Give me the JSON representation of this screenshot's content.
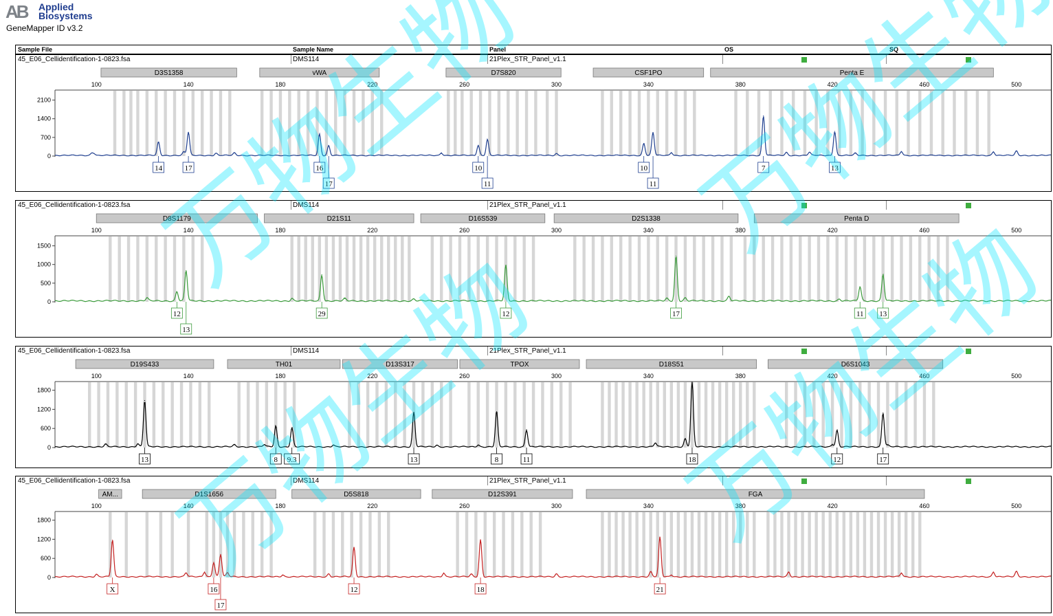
{
  "app": {
    "brand_mark": "AB",
    "brand_line1": "Applied",
    "brand_line2": "Biosystems",
    "product": "GeneMapper ID v3.2"
  },
  "header": {
    "sample_file": "Sample File",
    "sample_name": "Sample Name",
    "panel": "Panel",
    "os": "OS",
    "sq": "SQ"
  },
  "watermark_text": "万物生物",
  "chart_data": [
    {
      "type": "line",
      "panel_index": 1,
      "color": "#1f3f8f",
      "sample_file": "45_E06_Cellidentification-1-0823.fsa",
      "sample_name": "DMS114",
      "panel": "21Plex_STR_Panel_v1.1",
      "x_ticks": [
        100,
        140,
        180,
        220,
        260,
        300,
        340,
        380,
        420,
        460,
        500
      ],
      "xlim": [
        82,
        515
      ],
      "y_ticks": [
        0,
        700,
        1400,
        2100
      ],
      "ylim": [
        0,
        2450
      ],
      "markers": [
        {
          "name": "D3S1358",
          "range": [
            102,
            161
          ]
        },
        {
          "name": "vWA",
          "range": [
            171,
            223
          ]
        },
        {
          "name": "D7S820",
          "range": [
            252,
            302
          ]
        },
        {
          "name": "CSF1PO",
          "range": [
            316,
            364
          ]
        },
        {
          "name": "Penta E",
          "range": [
            367,
            490
          ]
        }
      ],
      "bins": [
        108,
        112,
        115,
        118,
        122,
        126,
        130,
        134,
        138,
        142,
        146,
        150,
        154,
        158,
        172,
        176,
        180,
        184,
        188,
        192,
        196,
        200,
        204,
        208,
        212,
        216,
        220,
        224,
        253,
        256,
        259,
        263,
        267,
        271,
        275,
        279,
        283,
        287,
        291,
        296,
        300,
        320,
        324,
        328,
        332,
        336,
        340,
        344,
        348,
        352,
        356,
        360,
        378,
        383,
        388,
        393,
        398,
        403,
        408,
        413,
        418,
        423,
        428,
        433,
        438,
        443,
        448,
        453,
        458,
        463,
        468,
        473,
        478,
        483,
        488
      ],
      "peaks": [
        {
          "x": 127,
          "h": 500
        },
        {
          "x": 140,
          "h": 870
        },
        {
          "x": 138,
          "h": 130
        },
        {
          "x": 197,
          "h": 800
        },
        {
          "x": 201,
          "h": 370
        },
        {
          "x": 266,
          "h": 380
        },
        {
          "x": 270,
          "h": 600
        },
        {
          "x": 338,
          "h": 450
        },
        {
          "x": 342,
          "h": 860
        },
        {
          "x": 390,
          "h": 1480
        },
        {
          "x": 421,
          "h": 900
        },
        {
          "x": 98,
          "h": 90
        },
        {
          "x": 99,
          "h": 70
        },
        {
          "x": 152,
          "h": 80
        },
        {
          "x": 160,
          "h": 90
        },
        {
          "x": 250,
          "h": 100
        },
        {
          "x": 300,
          "h": 70
        },
        {
          "x": 350,
          "h": 110
        },
        {
          "x": 400,
          "h": 110
        },
        {
          "x": 410,
          "h": 120
        },
        {
          "x": 430,
          "h": 80
        },
        {
          "x": 450,
          "h": 150
        },
        {
          "x": 490,
          "h": 140
        },
        {
          "x": 500,
          "h": 160
        }
      ],
      "alleles": [
        {
          "label": "14",
          "x": 127,
          "row": 0
        },
        {
          "label": "17",
          "x": 140,
          "row": 0
        },
        {
          "label": "16",
          "x": 197,
          "row": 0
        },
        {
          "label": "17",
          "x": 201,
          "row": 1
        },
        {
          "label": "10",
          "x": 266,
          "row": 0
        },
        {
          "label": "11",
          "x": 270,
          "row": 1
        },
        {
          "label": "10",
          "x": 338,
          "row": 0
        },
        {
          "label": "11",
          "x": 342,
          "row": 1
        },
        {
          "label": "7",
          "x": 390,
          "row": 0
        },
        {
          "label": "13",
          "x": 421,
          "row": 0
        }
      ]
    },
    {
      "type": "line",
      "panel_index": 2,
      "color": "#3a9a3a",
      "sample_file": "45_E06_Cellidentification-1-0823.fsa",
      "sample_name": "DMS114",
      "panel": "21Plex_STR_Panel_v1.1",
      "x_ticks": [
        100,
        140,
        180,
        220,
        260,
        300,
        340,
        380,
        420,
        460,
        500
      ],
      "xlim": [
        82,
        515
      ],
      "y_ticks": [
        0,
        500,
        1000,
        1500
      ],
      "ylim": [
        0,
        1750
      ],
      "markers": [
        {
          "name": "D8S1179",
          "range": [
            100,
            170
          ]
        },
        {
          "name": "D21S11",
          "range": [
            173,
            238
          ]
        },
        {
          "name": "D16S539",
          "range": [
            241,
            295
          ]
        },
        {
          "name": "D2S1338",
          "range": [
            299,
            379
          ]
        },
        {
          "name": "Penta D",
          "range": [
            386,
            475
          ]
        }
      ],
      "bins": [
        106,
        110,
        114,
        118,
        122,
        126,
        130,
        134,
        138,
        142,
        146,
        185,
        188,
        191,
        194,
        197,
        200,
        203,
        206,
        209,
        212,
        215,
        218,
        221,
        224,
        227,
        230,
        233,
        236,
        246,
        250,
        254,
        258,
        262,
        266,
        270,
        274,
        278,
        282,
        286,
        290,
        308,
        312,
        316,
        320,
        324,
        328,
        332,
        336,
        340,
        344,
        348,
        352,
        356,
        360,
        364,
        368,
        372,
        376,
        382,
        386,
        390,
        394,
        398,
        402,
        406,
        410,
        414,
        418,
        422,
        426,
        430,
        434,
        438,
        442,
        446,
        450,
        454,
        458,
        462,
        466,
        470
      ],
      "peaks": [
        {
          "x": 135,
          "h": 250
        },
        {
          "x": 139,
          "h": 810
        },
        {
          "x": 198,
          "h": 700
        },
        {
          "x": 278,
          "h": 950
        },
        {
          "x": 352,
          "h": 1200
        },
        {
          "x": 432,
          "h": 380
        },
        {
          "x": 442,
          "h": 710
        },
        {
          "x": 122,
          "h": 80
        },
        {
          "x": 185,
          "h": 70
        },
        {
          "x": 208,
          "h": 60
        },
        {
          "x": 238,
          "h": 50
        },
        {
          "x": 348,
          "h": 70
        },
        {
          "x": 356,
          "h": 80
        },
        {
          "x": 375,
          "h": 120
        },
        {
          "x": 423,
          "h": 50
        }
      ],
      "alleles": [
        {
          "label": "12",
          "x": 135,
          "row": 0
        },
        {
          "label": "13",
          "x": 139,
          "row": 1
        },
        {
          "label": "29",
          "x": 198,
          "row": 0
        },
        {
          "label": "12",
          "x": 278,
          "row": 0
        },
        {
          "label": "17",
          "x": 352,
          "row": 0
        },
        {
          "label": "11",
          "x": 432,
          "row": 0
        },
        {
          "label": "13",
          "x": 442,
          "row": 0
        }
      ]
    },
    {
      "type": "line",
      "panel_index": 3,
      "color": "#000000",
      "sample_file": "45_E06_Cellidentification-1-0823.fsa",
      "sample_name": "DMS114",
      "panel": "21Plex_STR_Panel_v1.1",
      "x_ticks": [
        100,
        140,
        180,
        220,
        260,
        300,
        340,
        380,
        420,
        460,
        500
      ],
      "xlim": [
        82,
        515
      ],
      "y_ticks": [
        0,
        600,
        1200,
        1800
      ],
      "ylim": [
        0,
        2050
      ],
      "markers": [
        {
          "name": "D19S433",
          "range": [
            91,
            151
          ]
        },
        {
          "name": "TH01",
          "range": [
            157,
            206
          ]
        },
        {
          "name": "D13S317",
          "range": [
            207,
            257
          ]
        },
        {
          "name": "TPOX",
          "range": [
            258,
            310
          ]
        },
        {
          "name": "D18S51",
          "range": [
            313,
            387
          ]
        },
        {
          "name": "D6S1043",
          "range": [
            392,
            468
          ]
        }
      ],
      "bins": [
        97,
        101,
        105,
        109,
        113,
        117,
        121,
        125,
        129,
        133,
        137,
        141,
        145,
        149,
        162,
        166,
        170,
        174,
        178,
        182,
        186,
        210,
        214,
        218,
        222,
        226,
        230,
        234,
        238,
        242,
        246,
        250,
        254,
        262,
        266,
        270,
        274,
        278,
        282,
        286,
        290,
        294,
        298,
        302,
        306,
        320,
        323,
        326,
        329,
        332,
        335,
        338,
        341,
        344,
        347,
        350,
        353,
        356,
        359,
        362,
        365,
        368,
        371,
        374,
        377,
        380,
        383,
        386,
        400,
        404,
        408,
        412,
        416,
        420,
        424,
        428,
        432,
        436,
        440,
        444,
        448,
        452,
        456,
        460,
        464
      ],
      "peaks": [
        {
          "x": 104,
          "h": 80
        },
        {
          "x": 118,
          "h": 100
        },
        {
          "x": 121,
          "h": 1450
        },
        {
          "x": 178,
          "h": 650
        },
        {
          "x": 185,
          "h": 600
        },
        {
          "x": 238,
          "h": 1080
        },
        {
          "x": 274,
          "h": 1100
        },
        {
          "x": 287,
          "h": 530
        },
        {
          "x": 356,
          "h": 250
        },
        {
          "x": 359,
          "h": 2050
        },
        {
          "x": 422,
          "h": 520
        },
        {
          "x": 442,
          "h": 1060
        },
        {
          "x": 160,
          "h": 60
        },
        {
          "x": 173,
          "h": 70
        },
        {
          "x": 203,
          "h": 60
        },
        {
          "x": 248,
          "h": 50
        },
        {
          "x": 266,
          "h": 60
        },
        {
          "x": 343,
          "h": 120
        },
        {
          "x": 420,
          "h": 80
        },
        {
          "x": 444,
          "h": 50
        }
      ],
      "alleles": [
        {
          "label": "13",
          "x": 121,
          "row": 0
        },
        {
          "label": "8",
          "x": 178,
          "row": 0
        },
        {
          "label": "9.3",
          "x": 185,
          "row": 0
        },
        {
          "label": "13",
          "x": 238,
          "row": 0
        },
        {
          "label": "8",
          "x": 274,
          "row": 0
        },
        {
          "label": "11",
          "x": 287,
          "row": 0
        },
        {
          "label": "18",
          "x": 359,
          "row": 0
        },
        {
          "label": "12",
          "x": 422,
          "row": 0
        },
        {
          "label": "17",
          "x": 442,
          "row": 0
        }
      ]
    },
    {
      "type": "line",
      "panel_index": 4,
      "color": "#c42020",
      "sample_file": "45_E06_Cellidentification-1-0823.fsa",
      "sample_name": "DMS114",
      "panel": "21Plex_STR_Panel_v1.1",
      "x_ticks": [
        100,
        140,
        180,
        220,
        260,
        300,
        340,
        380,
        420,
        460,
        500
      ],
      "xlim": [
        82,
        515
      ],
      "y_ticks": [
        0,
        600,
        1200,
        1800
      ],
      "ylim": [
        0,
        2050
      ],
      "markers": [
        {
          "name": "AM...",
          "range": [
            101,
            111
          ]
        },
        {
          "name": "D1S1656",
          "range": [
            120,
            178
          ]
        },
        {
          "name": "D5S818",
          "range": [
            185,
            241
          ]
        },
        {
          "name": "D12S391",
          "range": [
            246,
            307
          ]
        },
        {
          "name": "FGA",
          "range": [
            313,
            460
          ]
        }
      ],
      "bins": [
        106,
        113,
        122,
        128,
        133,
        140,
        148,
        151,
        154,
        157,
        160,
        164,
        168,
        172,
        176,
        195,
        199,
        203,
        207,
        211,
        215,
        219,
        223,
        227,
        257,
        261,
        265,
        269,
        273,
        277,
        281,
        285,
        289,
        293,
        320,
        323,
        326,
        329,
        332,
        335,
        338,
        341,
        344,
        347,
        350,
        353,
        356,
        359,
        362,
        365,
        368,
        371,
        374,
        377,
        380,
        383,
        386,
        392,
        395,
        398,
        401,
        404,
        407,
        410,
        413,
        416,
        419,
        422,
        425,
        428,
        431,
        434,
        437,
        440,
        443,
        446,
        449,
        452,
        455,
        458
      ],
      "peaks": [
        {
          "x": 107,
          "h": 1150
        },
        {
          "x": 151,
          "h": 450
        },
        {
          "x": 154,
          "h": 700
        },
        {
          "x": 212,
          "h": 920
        },
        {
          "x": 267,
          "h": 1160
        },
        {
          "x": 345,
          "h": 1240
        },
        {
          "x": 100,
          "h": 80
        },
        {
          "x": 147,
          "h": 150
        },
        {
          "x": 157,
          "h": 120
        },
        {
          "x": 139,
          "h": 120
        },
        {
          "x": 181,
          "h": 60
        },
        {
          "x": 201,
          "h": 90
        },
        {
          "x": 251,
          "h": 120
        },
        {
          "x": 263,
          "h": 80
        },
        {
          "x": 300,
          "h": 90
        },
        {
          "x": 341,
          "h": 150
        },
        {
          "x": 350,
          "h": 60
        },
        {
          "x": 401,
          "h": 150
        },
        {
          "x": 450,
          "h": 120
        },
        {
          "x": 490,
          "h": 150
        },
        {
          "x": 500,
          "h": 160
        }
      ],
      "alleles": [
        {
          "label": "X",
          "x": 107,
          "row": 0
        },
        {
          "label": "16",
          "x": 151,
          "row": 0
        },
        {
          "label": "17",
          "x": 154,
          "row": 1
        },
        {
          "label": "12",
          "x": 212,
          "row": 0
        },
        {
          "label": "18",
          "x": 267,
          "row": 0
        },
        {
          "label": "21",
          "x": 345,
          "row": 0
        }
      ]
    }
  ]
}
